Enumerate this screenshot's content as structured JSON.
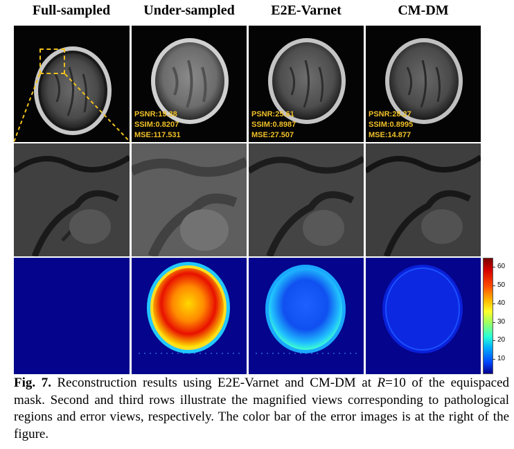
{
  "columns": [
    "Full-sampled",
    "Under-sampled",
    "E2E-Varnet",
    "CM-DM"
  ],
  "metrics": [
    null,
    {
      "psnr": "PSNR:19.38",
      "ssim": "SSIM:0.8207",
      "mse": "MSE:117.531"
    },
    {
      "psnr": "PSNR:25.61",
      "ssim": "SSIM:0.8987",
      "mse": "MSE:27.507"
    },
    {
      "psnr": "PSNR:28.27",
      "ssim": "SSIM:0.8995",
      "mse": "MSE:14.877"
    }
  ],
  "colorbar": {
    "ticks": [
      "60",
      "50",
      "40",
      "30",
      "20",
      "10"
    ],
    "colors": {
      "top": "#7a0000",
      "bottom": "#00008c"
    }
  },
  "caption": {
    "label": "Fig. 7.",
    "text_before": " Reconstruction results using E2E-Varnet and CM-DM at ",
    "var": "R",
    "text_after": "=10 of the equispaced mask. Second and third rows illustrate the magnified views corresponding to pathological regions and error views, respectively. The color bar of the error images is at the right of the figure."
  }
}
